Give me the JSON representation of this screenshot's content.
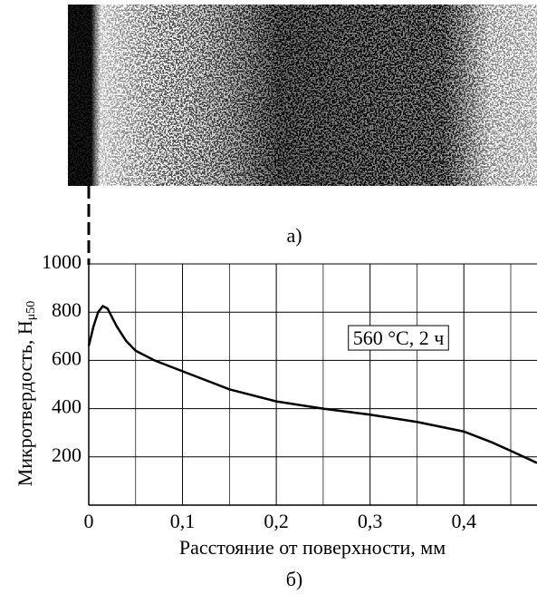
{
  "chart_data": {
    "type": "line",
    "panel_a_label": "а)",
    "panel_b_label": "б)",
    "x_label": "Расстояние от поверхности, мм",
    "y_label": "Микротвердость, Н",
    "y_label_sub": "μ50",
    "annotation": "560 °C, 2 ч",
    "xlim": [
      0,
      0.478
    ],
    "ylim": [
      0,
      1000
    ],
    "xticks": [
      0,
      {
        "value": 0.1,
        "label": "0,1"
      },
      {
        "value": 0.2,
        "label": "0,2"
      },
      {
        "value": 0.3,
        "label": "0,3"
      },
      {
        "value": 0.4,
        "label": "0,4"
      }
    ],
    "x_minor_grid": [
      0.05,
      0.15,
      0.25,
      0.35,
      0.45
    ],
    "yticks": [
      200,
      400,
      600,
      800,
      1000
    ],
    "grid": true,
    "x": [
      0,
      0.005,
      0.01,
      0.015,
      0.02,
      0.03,
      0.04,
      0.05,
      0.07,
      0.1,
      0.15,
      0.2,
      0.25,
      0.3,
      0.35,
      0.4,
      0.43,
      0.45,
      0.478
    ],
    "series": [
      {
        "color": "#000000",
        "values": [
          660,
          740,
          800,
          825,
          815,
          740,
          680,
          640,
          600,
          555,
          480,
          430,
          400,
          375,
          345,
          305,
          260,
          225,
          175
        ]
      }
    ]
  }
}
